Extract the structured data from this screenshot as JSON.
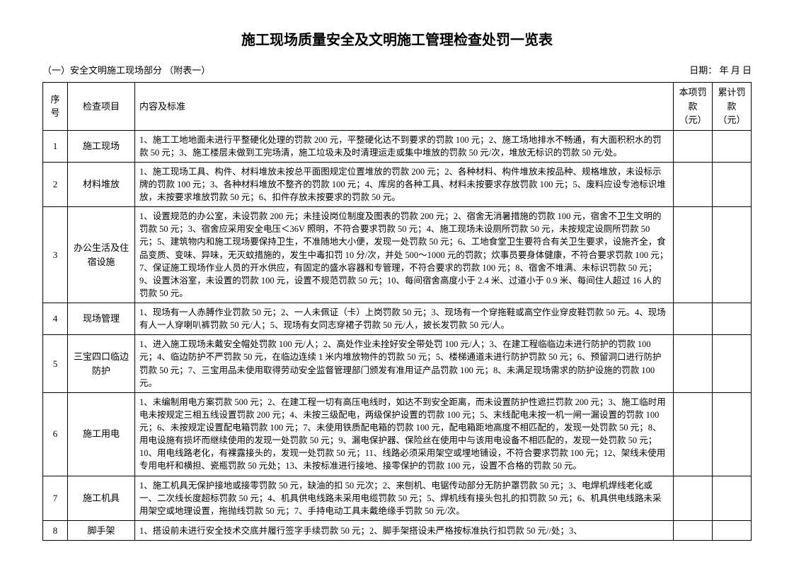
{
  "title": "施工现场质量安全及文明施工管理检查处罚一览表",
  "subtitle_left": "（一）安全文明施工现场部分  （附表一）",
  "subtitle_right": "日期：     年    月    日",
  "headers": {
    "seq": "序号",
    "item": "检查项目",
    "content": "内容及标准",
    "fine": "本项罚款（元）",
    "total": "累计罚款（元）"
  },
  "rows": [
    {
      "seq": "1",
      "item": "施工现场",
      "content": "1、施工工地地面未进行平整硬化处理的罚款 200 元，平整硬化达不到要求的罚款 100 元；2、施工场地排水不畅通，有大面积积水的罚款 50 元；3、施工楼层未做到工完场清，施工垃圾未及时清理运走或集中堆放的罚款 50 元/次，堆放无标识的罚款 50 元/处。"
    },
    {
      "seq": "2",
      "item": "材料堆放",
      "content": "1、施工现场工具、构件、材料堆放未按总平面图规定位置堆放的罚款 200 元；2、各种材料、构件堆放未按品种、规格堆放，未设标示牌的罚款 100 元；3、各种材料堆放不整齐的罚款 100 元；4、库房的各种工具、材料未按要求存放罚款 100 元；5、废料应设专池标识堆放，未按要求堆放罚款 50 元；6、扣件存放未按要求的罚款 50 元。"
    },
    {
      "seq": "3",
      "item": "办公生活及住宿设施",
      "content": "1、设置规范的办公室，未设罚款 200 元；未挂设岗位制度及图表的罚款 200 元；2、宿舍无消暑措施的罚款 100 元，宿舍不卫生文明的罚款 50 元；3、宿舍应采用安全电压＜36V 照明，不符合要求罚款 50 元；4、施工现场未设厕所罚款 50 元，未按规定设厕所罚款 50 元；5、建筑物内和施工现场要保持卫生，不准随地大小便，发现一处罚款 50 元；6、工地食堂卫生要符合有关卫生要求，设施齐全，食品变质、变味、异味，无灭蚊措施的，发生中毒扣罚 10 分/次，并处 500～1000 元的罚款；炊事员要身体健康，不符合要求罚款 100 元；7、保证施工现场作业人员的开水供应，有固定的盛水容器和专管理，不符合要求的罚款 100 元；8、宿舍不堆满、未标识罚款 50 元；9、设置沐浴室，未设置的罚款 100 元，设置不规范罚款 50 元；10、每间宿舍高度小于 2.4 米、过道小于 0.9 米、每间住人超过 16 人的罚款 50 元。"
    },
    {
      "seq": "4",
      "item": "现场管理",
      "content": "1、现场有一人赤膊作业罚款 50 元；2、一人未佩证（卡）上岗罚款 50 元；3、现场有一个穿拖鞋或高空作业穿皮鞋罚款 50 元。4、现场有人一人穿喇叭裤罚款 50 元/人；5、现场有女同志穿裙子罚款 50 元/人，披长发罚款 50 元/人。"
    },
    {
      "seq": "5",
      "item": "三宝四口临边防护",
      "content": "1、进入施工现场未戴安全帽处罚款 100 元/人；2、高处作业未拴好安全带处罚 100 元/人；3、在建工程临临边未进行防护的罚款 100 元；4、临边防护不严罚款 50 元，在临边连续 1 米内堆放物件的罚款 50 元；5、楼梯通道未进行防护罚款 50 元；6、预留洞口进行防护罚款 50 元；7、三宝用品未使用取得劳动安全监督管理部门颁发有准用证产品罚款 100 元；8、未满足现场需求的防护设施的罚款 100 元。"
    },
    {
      "seq": "6",
      "item": "施工用电",
      "content": "1、未编制用电方案罚款 500 元；2、在建工程一切有高压电线时，如达不到安全距离，而未设置防护性遮拦罚款 200 元；3、施工临时用电未按规定三相五线设置罚款 200 元；4、未按三级配电，两级保护设置的罚款 100 元；5、末线配电未按一机一闸一漏设置的罚款 100 元；6、未按规定设置配电箱罚款 100 元；7、未使用铁质配电箱的罚款 100 元，配电箱距地高度不相匹配的，发现一处罚款 50 元；8、用电设施有损坏而继续使用的发现一处罚款 50 元；9、漏电保护器、保险丝在使用中与该用电设备不相匹配的，发现一处罚款 50 元；10、用电线路老化，有裸露接头的，发现一处罚款 50 元；11、线路必须采用架空或埋地铺设，不符合要求罚款 100 元；12、架线未使用专用电杆和横担、瓷瓶罚款 50 元处；13、未按标准进行接地、接零保护的罚款 100 元，设置不合格的罚款 50 元。"
    },
    {
      "seq": "7",
      "item": "施工机具",
      "content": "1、施工机具无保护接地或接零罚款 50 元，缺油的扣 50 元次；2、来刨机、电锯传动部分无防护罩罚款 50 元；3、电焊机焊线老化或一、二次线长度超标罚款 50 元；4、机具供电线路未采用电缆罚款 50 元；5、焊机线有接头包扎的扣罚款 50 元；6、机具供电线路未采用架空或地理设置，拖抛线罚款 50 元；7、手持电动工具未戴绝缘手罚款 50 元/次。"
    },
    {
      "seq": "8",
      "item": "脚手架",
      "content": "1、搭设前未进行安全技术交底并履行签字手续罚款 50 元；2、脚手架搭设未严格按标准执行扣罚款 50 元//处；3、"
    }
  ]
}
